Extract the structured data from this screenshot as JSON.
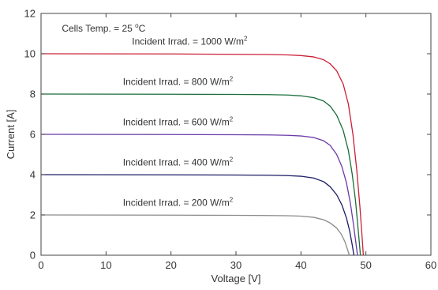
{
  "chart_data": {
    "type": "line",
    "xlabel": "Voltage [V]",
    "ylabel": "Current [A]",
    "xlim": [
      0,
      60
    ],
    "ylim": [
      0,
      12
    ],
    "xticks": [
      "0",
      "10",
      "20",
      "30",
      "40",
      "50",
      "60"
    ],
    "yticks": [
      "0",
      "2",
      "4",
      "6",
      "8",
      "10",
      "12"
    ],
    "grid": false,
    "legend": "none",
    "annotations": [
      {
        "id": "cells-temp",
        "prefix": "Cells Temp. = 25 ",
        "sup": "o",
        "suffix": "C"
      }
    ],
    "series": [
      {
        "name": "Incident Irrad. = 1000 W/m",
        "label_sup": "2",
        "color": "#cc1f36",
        "label_pos": [
          14,
          10.45
        ],
        "points": [
          [
            0,
            10.0
          ],
          [
            20,
            9.99
          ],
          [
            30,
            9.97
          ],
          [
            35,
            9.96
          ],
          [
            38,
            9.94
          ],
          [
            40,
            9.91
          ],
          [
            42,
            9.84
          ],
          [
            43.5,
            9.7
          ],
          [
            44.5,
            9.5
          ],
          [
            45.5,
            9.15
          ],
          [
            46.5,
            8.5
          ],
          [
            47.3,
            7.5
          ],
          [
            48,
            6.0
          ],
          [
            48.6,
            4.2
          ],
          [
            49.1,
            2.3
          ],
          [
            49.5,
            0.5
          ],
          [
            49.6,
            0
          ]
        ]
      },
      {
        "name": "Incident Irrad. = 800 W/m",
        "label_sup": "2",
        "color": "#1a6e3a",
        "label_pos": [
          12.6,
          8.45
        ],
        "points": [
          [
            0,
            8.0
          ],
          [
            20,
            7.99
          ],
          [
            30,
            7.98
          ],
          [
            35,
            7.97
          ],
          [
            38,
            7.95
          ],
          [
            40,
            7.91
          ],
          [
            42,
            7.82
          ],
          [
            43.5,
            7.65
          ],
          [
            44.5,
            7.4
          ],
          [
            45.5,
            6.95
          ],
          [
            46.5,
            6.2
          ],
          [
            47.3,
            5.2
          ],
          [
            47.9,
            4.0
          ],
          [
            48.4,
            2.7
          ],
          [
            48.8,
            1.3
          ],
          [
            49.1,
            0.2
          ],
          [
            49.15,
            0
          ]
        ]
      },
      {
        "name": "Incident Irrad. = 600 W/m",
        "label_sup": "2",
        "color": "#6a3aa8",
        "label_pos": [
          12.6,
          6.45
        ],
        "points": [
          [
            0,
            6.0
          ],
          [
            20,
            5.99
          ],
          [
            30,
            5.98
          ],
          [
            35,
            5.97
          ],
          [
            38,
            5.95
          ],
          [
            40,
            5.92
          ],
          [
            42,
            5.84
          ],
          [
            43.5,
            5.68
          ],
          [
            44.5,
            5.45
          ],
          [
            45.5,
            5.0
          ],
          [
            46.3,
            4.4
          ],
          [
            47,
            3.6
          ],
          [
            47.6,
            2.6
          ],
          [
            48.1,
            1.5
          ],
          [
            48.5,
            0.5
          ],
          [
            48.7,
            0
          ]
        ]
      },
      {
        "name": "Incident Irrad. = 400 W/m",
        "label_sup": "2",
        "color": "#1c1c66",
        "label_pos": [
          12.6,
          4.45
        ],
        "points": [
          [
            0,
            4.0
          ],
          [
            20,
            3.99
          ],
          [
            30,
            3.98
          ],
          [
            35,
            3.97
          ],
          [
            38,
            3.95
          ],
          [
            40,
            3.92
          ],
          [
            42,
            3.83
          ],
          [
            43.5,
            3.65
          ],
          [
            44.5,
            3.4
          ],
          [
            45.5,
            3.0
          ],
          [
            46.3,
            2.5
          ],
          [
            47,
            1.85
          ],
          [
            47.5,
            1.2
          ],
          [
            47.9,
            0.5
          ],
          [
            48.15,
            0
          ]
        ]
      },
      {
        "name": "Incident Irrad. = 200 W/m",
        "label_sup": "2",
        "color": "#8a8a8a",
        "label_pos": [
          12.6,
          2.45
        ],
        "points": [
          [
            0,
            2.0
          ],
          [
            20,
            1.99
          ],
          [
            30,
            1.98
          ],
          [
            35,
            1.97
          ],
          [
            38,
            1.96
          ],
          [
            40,
            1.94
          ],
          [
            42,
            1.88
          ],
          [
            43.5,
            1.76
          ],
          [
            44.5,
            1.6
          ],
          [
            45.5,
            1.35
          ],
          [
            46.2,
            1.05
          ],
          [
            46.8,
            0.65
          ],
          [
            47.2,
            0.25
          ],
          [
            47.45,
            0
          ]
        ]
      }
    ]
  }
}
